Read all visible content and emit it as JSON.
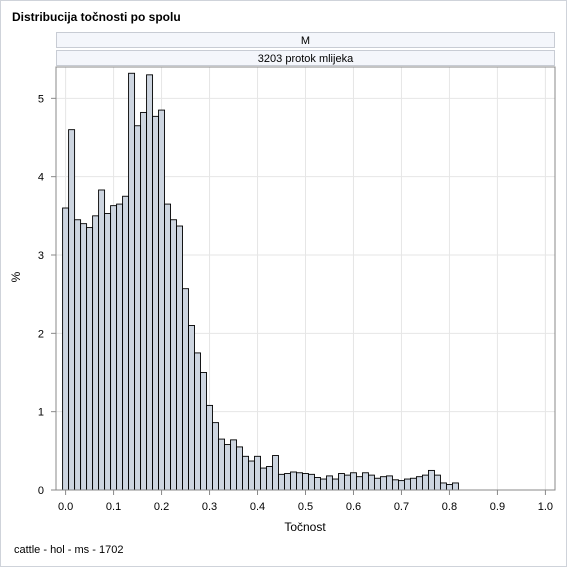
{
  "title": "Distribucija točnosti po spolu",
  "panel": {
    "header_1": "M",
    "header_2": "3203 protok mlijeka"
  },
  "footnote": "cattle - hol - ms - 1702",
  "colors": {
    "bar_fill": "#cdd5e0",
    "bar_stroke": "#000000",
    "grid": "#e6e6e6",
    "axis": "#888888"
  },
  "chart_data": {
    "type": "bar",
    "subtype": "histogram",
    "xlabel": "Točnost",
    "ylabel": "%",
    "xlim": [
      -0.02,
      1.02
    ],
    "ylim": [
      0,
      5.4
    ],
    "bin_width": 0.0125,
    "first_bin_start": -0.00625,
    "x_ticks": [
      0.0,
      0.1,
      0.2,
      0.3,
      0.4,
      0.5,
      0.6,
      0.7,
      0.8,
      0.9,
      1.0
    ],
    "x_tick_labels": [
      "0.0",
      "0.1",
      "0.2",
      "0.3",
      "0.4",
      "0.5",
      "0.6",
      "0.7",
      "0.8",
      "0.9",
      "1.0"
    ],
    "y_ticks": [
      0,
      1,
      2,
      3,
      4,
      5
    ],
    "y_tick_labels": [
      "0",
      "1",
      "2",
      "3",
      "4",
      "5"
    ],
    "grid": true,
    "values": [
      3.6,
      4.6,
      3.45,
      3.4,
      3.35,
      3.5,
      3.83,
      3.53,
      3.63,
      3.65,
      3.75,
      5.32,
      4.65,
      4.82,
      5.3,
      4.77,
      4.85,
      3.65,
      3.45,
      3.37,
      2.57,
      2.1,
      1.75,
      1.5,
      1.08,
      0.86,
      0.65,
      0.58,
      0.64,
      0.55,
      0.43,
      0.37,
      0.43,
      0.28,
      0.3,
      0.44,
      0.2,
      0.21,
      0.23,
      0.22,
      0.21,
      0.2,
      0.16,
      0.14,
      0.18,
      0.14,
      0.21,
      0.19,
      0.22,
      0.17,
      0.22,
      0.19,
      0.15,
      0.17,
      0.18,
      0.13,
      0.12,
      0.14,
      0.15,
      0.17,
      0.19,
      0.25,
      0.19,
      0.09,
      0.07,
      0.09
    ]
  }
}
